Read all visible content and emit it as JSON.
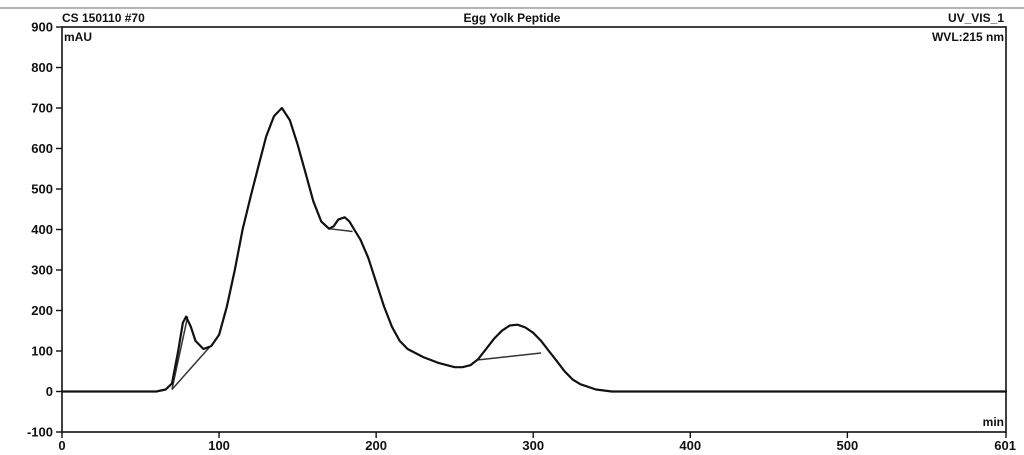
{
  "header": {
    "sample": "CS 150110 #70",
    "title": "Egg Yolk Peptide",
    "channel": "UV_VIS_1",
    "wavelength": "WVL:215 nm"
  },
  "chart_data": {
    "type": "line",
    "title": "Egg Yolk Peptide",
    "ylabel": "mAU",
    "xlabel": "min",
    "xlim": [
      0,
      601
    ],
    "ylim": [
      -100,
      900
    ],
    "x_ticks": [
      "0",
      "100",
      "200",
      "300",
      "400",
      "500",
      "601"
    ],
    "x_tick_values": [
      0,
      100,
      200,
      300,
      400,
      500,
      601
    ],
    "y_ticks": [
      "-100",
      "0",
      "100",
      "200",
      "300",
      "400",
      "500",
      "600",
      "700",
      "800",
      "900"
    ],
    "y_tick_values": [
      -100,
      0,
      100,
      200,
      300,
      400,
      500,
      600,
      700,
      800,
      900
    ],
    "grid": false,
    "series": [
      {
        "x": [
          0,
          40,
          60,
          66,
          70,
          74,
          77,
          79,
          82,
          85,
          90,
          95,
          100,
          105,
          110,
          115,
          120,
          125,
          130,
          135,
          140,
          145,
          150,
          155,
          160,
          165,
          170,
          173,
          176,
          180,
          183,
          186,
          190,
          195,
          200,
          205,
          210,
          215,
          220,
          230,
          240,
          250,
          255,
          260,
          265,
          270,
          275,
          280,
          285,
          290,
          295,
          300,
          305,
          310,
          315,
          320,
          325,
          330,
          340,
          350,
          400,
          450,
          500,
          550,
          601
        ],
        "y": [
          0,
          0,
          0,
          5,
          20,
          100,
          170,
          185,
          160,
          125,
          105,
          112,
          140,
          210,
          300,
          400,
          480,
          555,
          630,
          680,
          700,
          670,
          610,
          540,
          470,
          420,
          402,
          408,
          425,
          430,
          420,
          400,
          375,
          330,
          270,
          210,
          160,
          125,
          105,
          85,
          70,
          60,
          60,
          65,
          80,
          105,
          130,
          150,
          163,
          165,
          158,
          145,
          125,
          100,
          75,
          50,
          30,
          18,
          5,
          0,
          0,
          0,
          0,
          0,
          0
        ]
      }
    ],
    "baselines": [
      {
        "x": [
          70,
          94
        ],
        "y": [
          5,
          110
        ]
      },
      {
        "x": [
          70,
          80
        ],
        "y": [
          5,
          185
        ]
      },
      {
        "x": [
          170,
          185
        ],
        "y": [
          402,
          395
        ]
      },
      {
        "x": [
          265,
          305
        ],
        "y": [
          78,
          95
        ]
      }
    ]
  }
}
